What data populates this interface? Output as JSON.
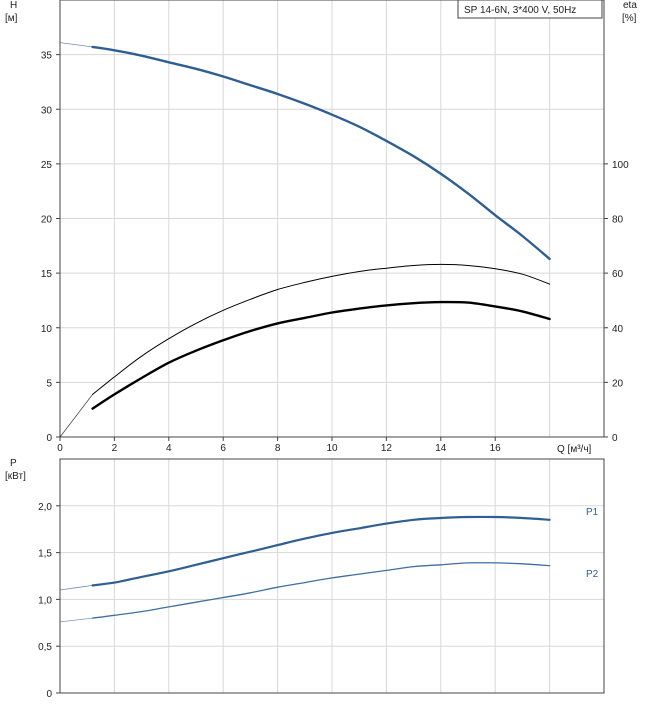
{
  "title_badge": "SP 14-6N, 3*400 V, 50Hz",
  "colors": {
    "h_curve": "#2f5f92",
    "eta_curve": "#000000",
    "p1_curve": "#2f5f92",
    "p2_curve": "#3f6f9f",
    "grid": "#d8d8d8",
    "axis": "#444444"
  },
  "chart_data": [
    {
      "type": "line",
      "panel": "head-and-efficiency",
      "xlabel": "Q [м³/ч]",
      "ylabel_left": "H",
      "ylabel_left_unit": "[м]",
      "ylabel_right": "eta",
      "ylabel_right_unit": "[%]",
      "xlim": [
        0,
        20
      ],
      "ylim_left": [
        0,
        40
      ],
      "ylim_right": [
        0,
        160
      ],
      "x_ticks": [
        0,
        2,
        4,
        6,
        8,
        10,
        12,
        14,
        16
      ],
      "left_ticks": [
        0,
        5,
        10,
        15,
        20,
        25,
        30,
        35
      ],
      "right_ticks": [
        0,
        20,
        40,
        60,
        80,
        100
      ],
      "grid": true,
      "series": [
        {
          "id": "H",
          "axis": "left",
          "x": [
            1.2,
            2,
            3,
            4,
            5,
            6,
            7,
            8,
            9,
            10,
            11,
            12,
            13,
            14,
            15,
            16,
            17,
            18
          ],
          "values": [
            35.7,
            35.4,
            34.9,
            34.3,
            33.7,
            33.0,
            32.2,
            31.4,
            30.5,
            29.5,
            28.4,
            27.1,
            25.7,
            24.1,
            22.3,
            20.3,
            18.4,
            16.3
          ],
          "extrapolated": {
            "x": [
              0,
              1.2
            ],
            "values": [
              36.1,
              35.7
            ]
          },
          "weight": 2.4
        },
        {
          "id": "eta",
          "axis": "right",
          "x": [
            1.2,
            2,
            3,
            4,
            5,
            6,
            7,
            8,
            9,
            10,
            11,
            12,
            13,
            14,
            15,
            16,
            17,
            18
          ],
          "values": [
            15.6,
            22.0,
            29.6,
            36.0,
            41.6,
            46.4,
            50.4,
            54.0,
            56.6,
            58.8,
            60.6,
            61.8,
            62.8,
            63.2,
            62.8,
            61.6,
            59.6,
            56.0
          ],
          "extrapolated": {
            "x": [
              0,
              1.2
            ],
            "values": [
              0,
              15.6
            ]
          },
          "weight": 1.0
        },
        {
          "id": "eta2",
          "axis": "right",
          "x": [
            1.2,
            2,
            3,
            4,
            5,
            6,
            7,
            8,
            9,
            10,
            11,
            12,
            13,
            14,
            15,
            16,
            17,
            18
          ],
          "values": [
            10.4,
            15.6,
            21.6,
            27.2,
            31.6,
            35.4,
            38.8,
            41.6,
            43.6,
            45.6,
            47.0,
            48.2,
            49.0,
            49.4,
            49.2,
            47.8,
            46.0,
            43.2
          ],
          "weight": 2.4
        }
      ]
    },
    {
      "type": "line",
      "panel": "power",
      "ylabel": "P",
      "ylabel_unit": "[кВт]",
      "xlim": [
        0,
        20
      ],
      "ylim": [
        0,
        2.5
      ],
      "y_ticks": [
        0,
        0.5,
        1.0,
        1.5,
        2.0
      ],
      "y_tick_labels": [
        "0",
        "0,5",
        "1,0",
        "1,5",
        "2,0"
      ],
      "grid": true,
      "series": [
        {
          "id": "P1",
          "name": "P1",
          "x": [
            1.2,
            2,
            3,
            4,
            5,
            6,
            7,
            8,
            9,
            10,
            11,
            12,
            13,
            14,
            15,
            16,
            17,
            18
          ],
          "values": [
            1.15,
            1.18,
            1.24,
            1.3,
            1.37,
            1.44,
            1.51,
            1.58,
            1.65,
            1.71,
            1.76,
            1.81,
            1.85,
            1.87,
            1.88,
            1.88,
            1.87,
            1.85
          ],
          "extrapolated": {
            "x": [
              0,
              1.2
            ],
            "values": [
              1.1,
              1.15
            ]
          },
          "weight": 2.2
        },
        {
          "id": "P2",
          "name": "P2",
          "x": [
            1.2,
            2,
            3,
            4,
            5,
            6,
            7,
            8,
            9,
            10,
            11,
            12,
            13,
            14,
            15,
            16,
            17,
            18
          ],
          "values": [
            0.8,
            0.83,
            0.87,
            0.92,
            0.97,
            1.02,
            1.07,
            1.13,
            1.18,
            1.23,
            1.27,
            1.31,
            1.35,
            1.37,
            1.39,
            1.39,
            1.38,
            1.36
          ],
          "extrapolated": {
            "x": [
              0,
              1.2
            ],
            "values": [
              0.76,
              0.8
            ]
          },
          "weight": 1.3
        }
      ]
    }
  ]
}
